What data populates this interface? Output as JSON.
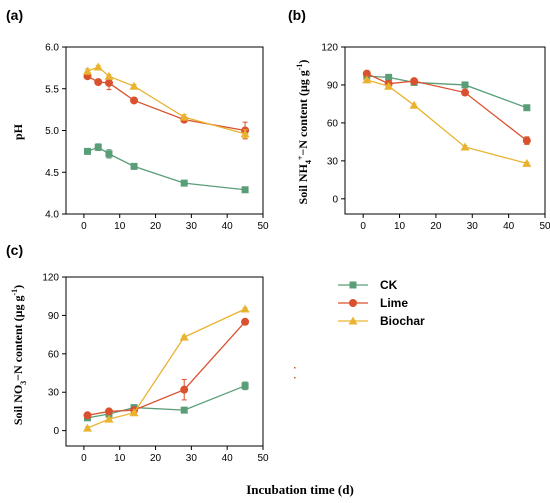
{
  "chart_data": [
    {
      "type": "line",
      "panel": "(a)",
      "ylabel": "pH",
      "xlim": [
        -5,
        50
      ],
      "ylim": [
        4.0,
        6.0
      ],
      "xticks": [
        0,
        10,
        20,
        30,
        40,
        50
      ],
      "yticks": [
        4.0,
        4.5,
        5.0,
        5.5,
        6.0
      ],
      "ytick_labels": [
        "4.0",
        "4.5",
        "5.0",
        "5.5",
        "6.0"
      ],
      "series": [
        {
          "name": "CK",
          "color": "#5a9e78",
          "marker": "square",
          "x": [
            1,
            4,
            7,
            14,
            28,
            45
          ],
          "y": [
            4.75,
            4.8,
            4.72,
            4.57,
            4.37,
            4.29
          ],
          "err": [
            0.02,
            0.04,
            0.05,
            0.02,
            0.02,
            0.03
          ]
        },
        {
          "name": "Lime",
          "color": "#d9512e",
          "marker": "circle",
          "x": [
            1,
            4,
            7,
            14,
            28,
            45
          ],
          "y": [
            5.65,
            5.58,
            5.57,
            5.36,
            5.13,
            5.0
          ],
          "err": [
            0.03,
            0.03,
            0.08,
            0.02,
            0.03,
            0.1
          ]
        },
        {
          "name": "Biochar",
          "color": "#e9b330",
          "marker": "triangle",
          "x": [
            1,
            4,
            7,
            14,
            28,
            45
          ],
          "y": [
            5.71,
            5.76,
            5.65,
            5.53,
            5.16,
            4.96
          ],
          "err": [
            0.03,
            0.02,
            0.02,
            0.02,
            0.03,
            0.05
          ]
        }
      ]
    },
    {
      "type": "line",
      "panel": "(b)",
      "ylabel": "Soil NH4+−N content (μg g-1)",
      "xlim": [
        -5,
        50
      ],
      "ylim": [
        -12,
        120
      ],
      "xticks": [
        0,
        10,
        20,
        30,
        40,
        50
      ],
      "yticks": [
        0,
        30,
        60,
        90,
        120
      ],
      "ytick_labels": [
        "0",
        "30",
        "60",
        "90",
        "120"
      ],
      "series": [
        {
          "name": "CK",
          "color": "#5a9e78",
          "marker": "square",
          "x": [
            1,
            7,
            14,
            28,
            45
          ],
          "y": [
            97,
            96,
            92,
            90,
            72
          ],
          "err": [
            1,
            1,
            1,
            1,
            1
          ]
        },
        {
          "name": "Lime",
          "color": "#d9512e",
          "marker": "circle",
          "x": [
            1,
            7,
            14,
            28,
            45
          ],
          "y": [
            99,
            91,
            93,
            84,
            46
          ],
          "err": [
            1,
            1,
            1,
            1,
            3
          ]
        },
        {
          "name": "Biochar",
          "color": "#e9b330",
          "marker": "triangle",
          "x": [
            1,
            7,
            14,
            28,
            45
          ],
          "y": [
            94,
            89,
            74,
            41,
            28
          ],
          "err": [
            1,
            1,
            1,
            1,
            1
          ]
        }
      ]
    },
    {
      "type": "line",
      "panel": "(c)",
      "ylabel": "Soil NO3−N content (μg g-1)",
      "xlabel": "Incubation time (d)",
      "xlim": [
        -5,
        50
      ],
      "ylim": [
        -12,
        120
      ],
      "xticks": [
        0,
        10,
        20,
        30,
        40,
        50
      ],
      "yticks": [
        0,
        30,
        60,
        90,
        120
      ],
      "ytick_labels": [
        "0",
        "30",
        "60",
        "90",
        "120"
      ],
      "series": [
        {
          "name": "CK",
          "color": "#5a9e78",
          "marker": "square",
          "x": [
            1,
            7,
            14,
            28,
            45
          ],
          "y": [
            10,
            13,
            18,
            16,
            35
          ],
          "err": [
            1,
            1,
            1,
            1,
            3
          ]
        },
        {
          "name": "Lime",
          "color": "#d9512e",
          "marker": "circle",
          "x": [
            1,
            7,
            14,
            28,
            45
          ],
          "y": [
            12,
            15,
            16,
            32,
            85
          ],
          "err": [
            1,
            1,
            1,
            8,
            1
          ]
        },
        {
          "name": "Biochar",
          "color": "#e9b330",
          "marker": "triangle",
          "x": [
            1,
            7,
            14,
            28,
            45
          ],
          "y": [
            2,
            9,
            14,
            73,
            95
          ],
          "err": [
            1,
            1,
            1,
            1,
            1
          ]
        }
      ]
    }
  ],
  "legend": {
    "placement": "bottom-right",
    "items": [
      {
        "label": "CK",
        "color": "#5a9e78",
        "marker": "square"
      },
      {
        "label": "Lime",
        "color": "#d9512e",
        "marker": "circle"
      },
      {
        "label": "Biochar",
        "color": "#e9b330",
        "marker": "triangle"
      }
    ]
  }
}
